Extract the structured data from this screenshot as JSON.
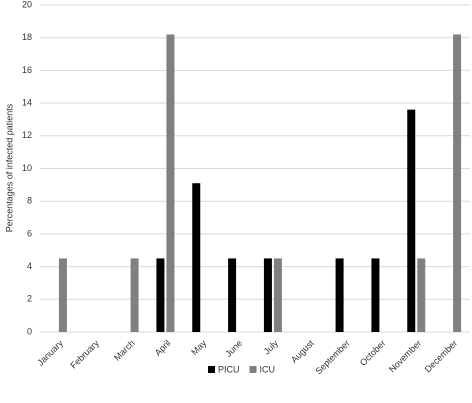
{
  "chart_data": {
    "type": "bar",
    "y_label": "Percentages of infected patients",
    "categories": [
      "January",
      "February",
      "March",
      "April",
      "May",
      "June",
      "July",
      "August",
      "September",
      "October",
      "November",
      "December"
    ],
    "series": [
      {
        "name": "PICU",
        "color": "#000000",
        "values": [
          0,
          0,
          0,
          4.5,
          9.1,
          4.5,
          4.5,
          0,
          4.5,
          4.5,
          13.6,
          0
        ]
      },
      {
        "name": "ICU",
        "color": "#808080",
        "values": [
          4.5,
          0,
          4.5,
          18.2,
          0,
          0,
          4.5,
          0,
          0,
          0,
          4.5,
          18.2
        ]
      }
    ],
    "ylim": [
      0,
      20
    ],
    "yticks": [
      0,
      2,
      4,
      6,
      8,
      10,
      12,
      14,
      16,
      18,
      20
    ],
    "grid": true
  }
}
